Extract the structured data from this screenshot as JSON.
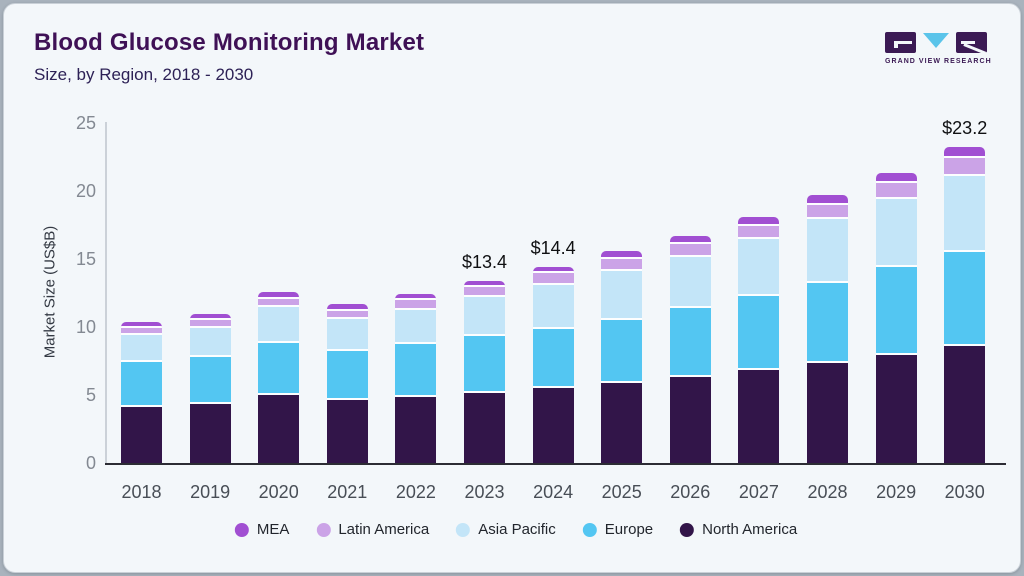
{
  "header": {
    "title": "Blood Glucose Monitoring Market",
    "subtitle": "Size, by Region, 2018 - 2030"
  },
  "logo": {
    "text": "GRAND VIEW RESEARCH"
  },
  "colors": {
    "frame": "#a9b3bd",
    "card_background": "#f3f7fa",
    "title": "#3f1156",
    "subtitle": "#2d2156",
    "x_axis_line": "#2c2c34",
    "y_axis_line": "#cbd1d8",
    "y_tick_label": "#838992",
    "x_tick_label": "#484e56",
    "annotation_text": "#0f1012",
    "legend_label": "#22262d",
    "logo_dark": "#3b1a54",
    "logo_blue": "#5ac4ea"
  },
  "chart_data": {
    "type": "bar",
    "stacked": true,
    "title": "Blood Glucose Monitoring Market",
    "subtitle": "Size, by Region, 2018 - 2030",
    "ylabel": "Market Size (US$B)",
    "xlabel": "",
    "ylim": [
      0,
      25
    ],
    "yticks": [
      0,
      5,
      10,
      15,
      20,
      25
    ],
    "grid": false,
    "legend_position": "bottom",
    "categories": [
      "2018",
      "2019",
      "2020",
      "2021",
      "2022",
      "2023",
      "2024",
      "2025",
      "2026",
      "2027",
      "2028",
      "2029",
      "2030"
    ],
    "series": [
      {
        "name": "North America",
        "color": "#321549",
        "values": [
          4.15,
          4.32,
          5.0,
          4.64,
          4.83,
          5.17,
          5.49,
          5.9,
          6.29,
          6.83,
          7.36,
          7.93,
          8.61
        ]
      },
      {
        "name": "Europe",
        "color": "#53c6f2",
        "values": [
          3.29,
          3.44,
          3.85,
          3.61,
          3.95,
          4.15,
          4.39,
          4.64,
          5.12,
          5.48,
          5.85,
          6.47,
          6.92
        ]
      },
      {
        "name": "Asia Pacific",
        "color": "#c3e5f8",
        "values": [
          1.95,
          2.17,
          2.61,
          2.37,
          2.49,
          2.87,
          3.24,
          3.56,
          3.75,
          4.15,
          4.7,
          5.0,
          5.56
        ]
      },
      {
        "name": "Latin America",
        "color": "#cba3e7",
        "values": [
          0.54,
          0.56,
          0.61,
          0.56,
          0.69,
          0.78,
          0.83,
          0.9,
          0.93,
          0.98,
          1.05,
          1.17,
          1.34
        ]
      },
      {
        "name": "MEA",
        "color": "#a14fd2",
        "values": [
          0.44,
          0.49,
          0.54,
          0.54,
          0.49,
          0.44,
          0.44,
          0.56,
          0.61,
          0.66,
          0.71,
          0.78,
          0.81
        ]
      }
    ],
    "totals_usd_b": [
      10.4,
      11.0,
      12.6,
      11.7,
      12.5,
      13.4,
      14.4,
      15.6,
      16.7,
      18.1,
      19.7,
      21.4,
      23.2
    ],
    "annotations": [
      {
        "category": "2023",
        "label": "$13.4"
      },
      {
        "category": "2024",
        "label": "$14.4"
      },
      {
        "category": "2030",
        "label": "$23.2"
      }
    ],
    "legend": [
      "MEA",
      "Latin America",
      "Asia Pacific",
      "Europe",
      "North America"
    ]
  }
}
